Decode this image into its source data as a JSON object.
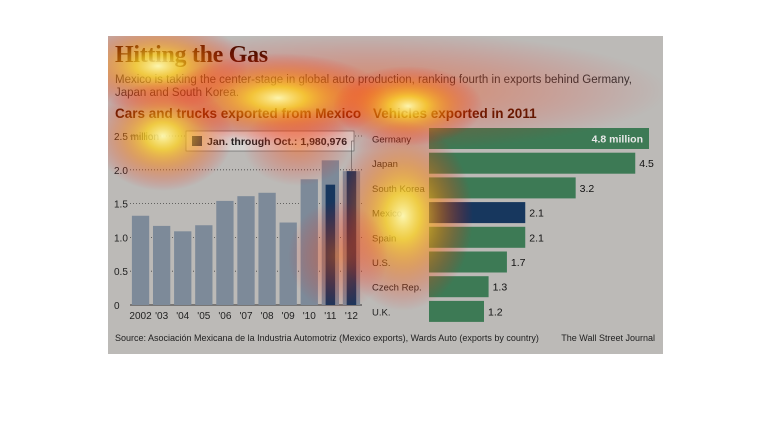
{
  "header": {
    "title": "Hitting the Gas",
    "subtitle": "Mexico is taking the center-stage in global auto production, ranking fourth in exports behind Germany, Japan and South Korea."
  },
  "footer": {
    "source": "Source:  Asociación Mexicana de la Industria Automotriz (Mexico exports), Wards Auto (exports by country)",
    "brand": "The Wall Street Journal"
  },
  "colors": {
    "bar_gray": "#7d8a99",
    "bar_dark": "#17375e",
    "bar_green": "#3d7a55",
    "bar_highlight": "#17375e",
    "title": "#3d0f00"
  },
  "chart_data": [
    {
      "type": "bar",
      "title": "Cars and trucks exported from Mexico",
      "categories": [
        "2002",
        "'03",
        "'04",
        "'05",
        "'06",
        "'07",
        "'08",
        "'09",
        "'10",
        "'11",
        "'12"
      ],
      "series": [
        {
          "name": "",
          "values": [
            1.32,
            1.17,
            1.09,
            1.18,
            1.54,
            1.61,
            1.66,
            1.22,
            1.86,
            2.14,
            1.98
          ]
        },
        {
          "name": "Jan. through Oct.",
          "values": [
            null,
            null,
            null,
            null,
            null,
            null,
            null,
            null,
            null,
            1.78,
            1.98
          ]
        }
      ],
      "yticks": [
        "0",
        "0.5",
        "1.0",
        "1.5",
        "2.0",
        "2.5 million"
      ],
      "ylim": [
        0,
        2.5
      ],
      "annotation": "Jan. through Oct.: 1,980,976",
      "orientation": "vertical"
    },
    {
      "type": "bar",
      "title": "Vehicles exported in 2011",
      "categories": [
        "Germany",
        "Japan",
        "South Korea",
        "Mexico",
        "Spain",
        "U.S.",
        "Czech Rep.",
        "U.K."
      ],
      "values": [
        4.8,
        4.5,
        3.2,
        2.1,
        2.1,
        1.7,
        1.3,
        1.2
      ],
      "value_labels": [
        "4.8 million",
        "4.5",
        "3.2",
        "2.1",
        "2.1",
        "1.7",
        "1.3",
        "1.2"
      ],
      "highlight": "Mexico",
      "orientation": "horizontal",
      "xlim": [
        0,
        4.8
      ]
    }
  ]
}
